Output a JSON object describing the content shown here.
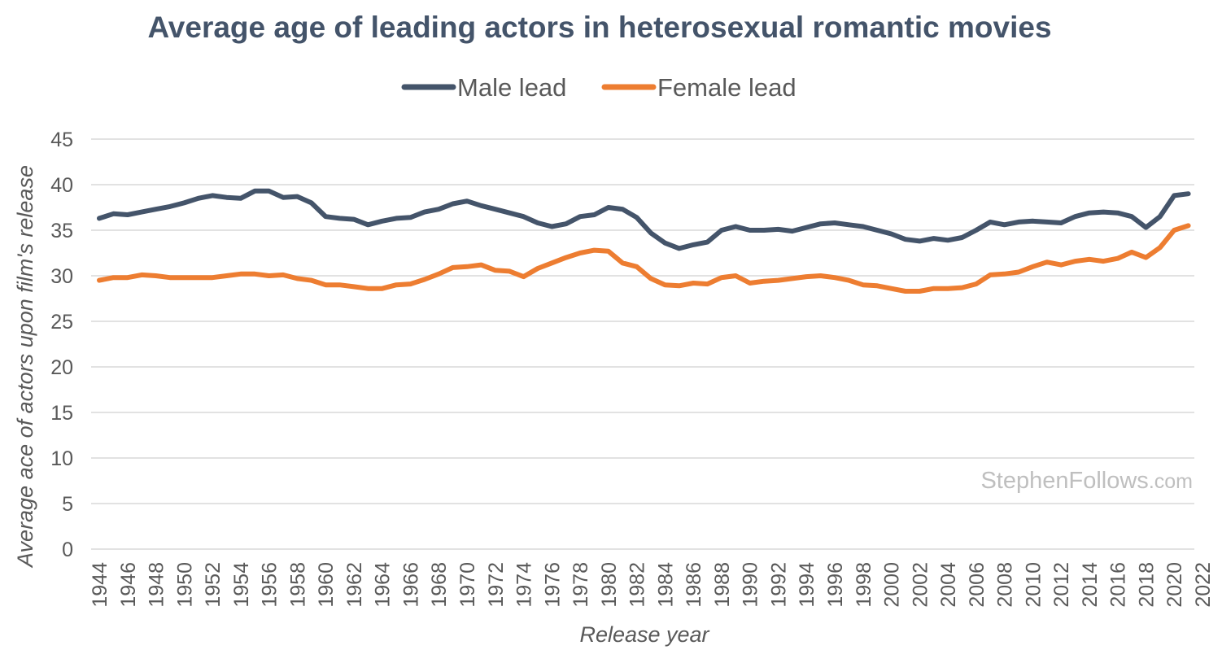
{
  "chart_data": {
    "type": "line",
    "title": "Average age of leading actors in heterosexual romantic movies",
    "xlabel": "Release year",
    "ylabel": "Average ace of actors upon film's release",
    "ylim": [
      0,
      45
    ],
    "yticks": [
      0,
      5,
      10,
      15,
      20,
      25,
      30,
      35,
      40,
      45
    ],
    "xlim": [
      1944,
      2022
    ],
    "xtick_labels": [
      "1944",
      "1946",
      "1948",
      "1950",
      "1952",
      "1954",
      "1956",
      "1958",
      "1960",
      "1962",
      "1964",
      "1966",
      "1968",
      "1970",
      "1972",
      "1974",
      "1976",
      "1978",
      "1980",
      "1982",
      "1984",
      "1986",
      "1988",
      "1990",
      "1992",
      "1994",
      "1996",
      "1998",
      "2000",
      "2002",
      "2004",
      "2006",
      "2008",
      "2010",
      "2012",
      "2014",
      "2016",
      "2018",
      "2020",
      "2022"
    ],
    "legend_position": "top-center",
    "grid": true,
    "watermark": "StephenFollows",
    "watermark_suffix": ".com",
    "x": [
      1944,
      1945,
      1946,
      1947,
      1948,
      1949,
      1950,
      1951,
      1952,
      1953,
      1954,
      1955,
      1956,
      1957,
      1958,
      1959,
      1960,
      1961,
      1962,
      1963,
      1964,
      1965,
      1966,
      1967,
      1968,
      1969,
      1970,
      1971,
      1972,
      1973,
      1974,
      1975,
      1976,
      1977,
      1978,
      1979,
      1980,
      1981,
      1982,
      1983,
      1984,
      1985,
      1986,
      1987,
      1988,
      1989,
      1990,
      1991,
      1992,
      1993,
      1994,
      1995,
      1996,
      1997,
      1998,
      1999,
      2000,
      2001,
      2002,
      2003,
      2004,
      2005,
      2006,
      2007,
      2008,
      2009,
      2010,
      2011,
      2012,
      2013,
      2014,
      2015,
      2016,
      2017,
      2018,
      2019,
      2020,
      2021
    ],
    "series": [
      {
        "name": "Male lead",
        "color": "#44546a",
        "values": [
          36.3,
          36.8,
          36.7,
          37.0,
          37.3,
          37.6,
          38.0,
          38.5,
          38.8,
          38.6,
          38.5,
          39.3,
          39.3,
          38.6,
          38.7,
          38.0,
          36.5,
          36.3,
          36.2,
          35.6,
          36.0,
          36.3,
          36.4,
          37.0,
          37.3,
          37.9,
          38.2,
          37.7,
          37.3,
          36.9,
          36.5,
          35.8,
          35.4,
          35.7,
          36.5,
          36.7,
          37.5,
          37.3,
          36.4,
          34.7,
          33.6,
          33.0,
          33.4,
          33.7,
          35.0,
          35.4,
          35.0,
          35.0,
          35.1,
          34.9,
          35.3,
          35.7,
          35.8,
          35.6,
          35.4,
          35.0,
          34.6,
          34.0,
          33.8,
          34.1,
          33.9,
          34.2,
          35.0,
          35.9,
          35.6,
          35.9,
          36.0,
          35.9,
          35.8,
          36.5,
          36.9,
          37.0,
          36.9,
          36.5,
          35.3,
          36.5,
          38.8,
          39.0
        ]
      },
      {
        "name": "Female lead",
        "color": "#ed7d31",
        "values": [
          29.5,
          29.8,
          29.8,
          30.1,
          30.0,
          29.8,
          29.8,
          29.8,
          29.8,
          30.0,
          30.2,
          30.2,
          30.0,
          30.1,
          29.7,
          29.5,
          29.0,
          29.0,
          28.8,
          28.6,
          28.6,
          29.0,
          29.1,
          29.6,
          30.2,
          30.9,
          31.0,
          31.2,
          30.6,
          30.5,
          29.9,
          30.8,
          31.4,
          32.0,
          32.5,
          32.8,
          32.7,
          31.4,
          31.0,
          29.7,
          29.0,
          28.9,
          29.2,
          29.1,
          29.8,
          30.0,
          29.2,
          29.4,
          29.5,
          29.7,
          29.9,
          30.0,
          29.8,
          29.5,
          29.0,
          28.9,
          28.6,
          28.3,
          28.3,
          28.6,
          28.6,
          28.7,
          29.1,
          30.1,
          30.2,
          30.4,
          31.0,
          31.5,
          31.2,
          31.6,
          31.8,
          31.6,
          31.9,
          32.6,
          32.0,
          33.1,
          35.0,
          35.5
        ]
      }
    ]
  }
}
